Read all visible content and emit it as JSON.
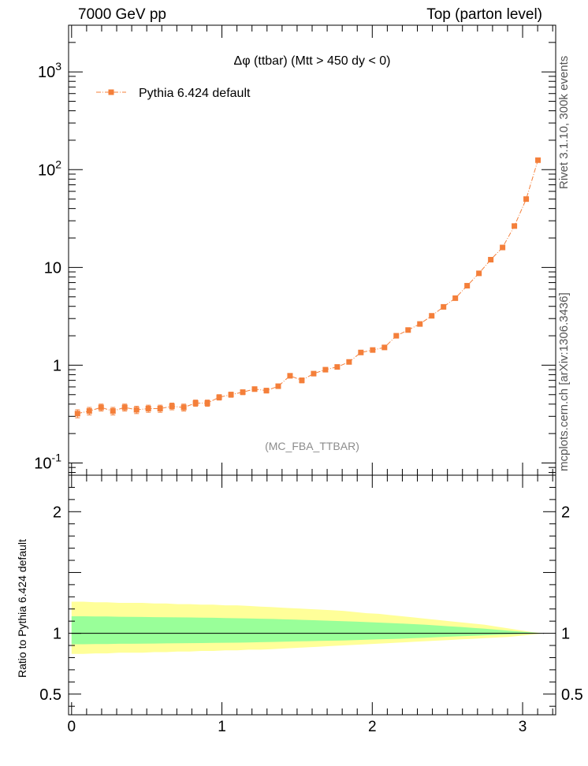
{
  "header": {
    "left": "7000 GeV pp",
    "right": "Top (parton level)"
  },
  "side": {
    "rivet": "Rivet 3.1.10,  300k events",
    "mcplots": "mcplots.cern.ch [arXiv:1306.3436]"
  },
  "colors": {
    "series": "#f47f3a",
    "band_outer": "#ffff99",
    "band_inner": "#99ff99"
  },
  "chart_data": [
    {
      "type": "scatter",
      "title": "Δφ (ttbar) (Mtt > 450 dy < 0)",
      "watermark": "(MC_FBA_TTBAR)",
      "yscale": "log",
      "xlim": [
        -0.02,
        3.22
      ],
      "ylim": [
        0.075,
        3000
      ],
      "legend": "top-left",
      "ytick_labels": [
        "10^-1",
        "1",
        "10",
        "10^2",
        "10^3"
      ],
      "series": [
        {
          "name": "Pythia 6.424 default",
          "x": [
            0.0393,
            0.1178,
            0.1963,
            0.2749,
            0.3534,
            0.432,
            0.5105,
            0.589,
            0.6676,
            0.7461,
            0.8247,
            0.9032,
            0.9817,
            1.0603,
            1.1388,
            1.2174,
            1.2959,
            1.3744,
            1.453,
            1.5315,
            1.6101,
            1.6886,
            1.7671,
            1.8457,
            1.9242,
            2.0028,
            2.0813,
            2.1598,
            2.2384,
            2.3169,
            2.3955,
            2.474,
            2.5525,
            2.6311,
            2.7096,
            2.7882,
            2.8667,
            2.9452,
            3.0238,
            3.1023
          ],
          "y": [
            0.32,
            0.34,
            0.37,
            0.34,
            0.37,
            0.35,
            0.36,
            0.36,
            0.38,
            0.37,
            0.41,
            0.41,
            0.47,
            0.5,
            0.53,
            0.57,
            0.55,
            0.61,
            0.78,
            0.7,
            0.82,
            0.9,
            0.96,
            1.08,
            1.35,
            1.43,
            1.52,
            2.0,
            2.29,
            2.64,
            3.2,
            3.95,
            4.85,
            6.5,
            8.7,
            12.0,
            16.0,
            26.5,
            50.0,
            125.0
          ],
          "yerr": [
            0.03,
            0.03,
            0.03,
            0.03,
            0.03,
            0.03,
            0.03,
            0.03,
            0.03,
            0.03,
            0.03,
            0.03,
            0.03,
            0.03,
            0.03,
            0.03,
            0.03,
            0.03,
            0.04,
            0.04,
            0.04,
            0.04,
            0.04,
            0.05,
            0.05,
            0.05,
            0.05,
            0.06,
            0.06,
            0.07,
            0.08,
            0.09,
            0.1,
            0.12,
            0.15,
            0.2,
            0.25,
            0.35,
            0.6,
            1.2
          ]
        }
      ]
    },
    {
      "type": "area",
      "ylabel": "Ratio to Pythia 6.424 default",
      "xlim": [
        -0.02,
        3.22
      ],
      "ylim": [
        0.33,
        2.3
      ],
      "xtick_labels": [
        "0",
        "1",
        "2",
        "3"
      ],
      "ytick_labels": [
        "0.5",
        "1",
        "2"
      ],
      "band_x": [
        0.0,
        0.0785,
        0.1571,
        0.2356,
        0.3142,
        0.3927,
        0.4712,
        0.5498,
        0.6283,
        0.7069,
        0.7854,
        0.8639,
        0.9425,
        1.021,
        1.0996,
        1.1781,
        1.2566,
        1.3352,
        1.4137,
        1.4923,
        1.5708,
        1.6493,
        1.7279,
        1.8064,
        1.885,
        1.9635,
        2.042,
        2.1206,
        2.1991,
        2.2777,
        2.3562,
        2.4347,
        2.5133,
        2.5918,
        2.6704,
        2.7489,
        2.8274,
        2.906,
        2.9845,
        3.0631,
        3.1416
      ],
      "outer_low": [
        0.83,
        0.83,
        0.835,
        0.835,
        0.84,
        0.84,
        0.84,
        0.845,
        0.845,
        0.85,
        0.85,
        0.855,
        0.855,
        0.86,
        0.86,
        0.865,
        0.865,
        0.87,
        0.875,
        0.88,
        0.885,
        0.89,
        0.895,
        0.9,
        0.905,
        0.91,
        0.915,
        0.92,
        0.925,
        0.93,
        0.935,
        0.94,
        0.945,
        0.95,
        0.955,
        0.96,
        0.965,
        0.97,
        0.98,
        0.99,
        1.0
      ],
      "outer_high": [
        1.26,
        1.26,
        1.255,
        1.255,
        1.25,
        1.25,
        1.25,
        1.245,
        1.245,
        1.24,
        1.24,
        1.235,
        1.235,
        1.23,
        1.23,
        1.225,
        1.22,
        1.215,
        1.21,
        1.205,
        1.2,
        1.195,
        1.19,
        1.185,
        1.175,
        1.165,
        1.16,
        1.15,
        1.14,
        1.13,
        1.12,
        1.11,
        1.1,
        1.09,
        1.08,
        1.07,
        1.055,
        1.04,
        1.025,
        1.01,
        1.0
      ],
      "inner_low": [
        0.91,
        0.91,
        0.912,
        0.912,
        0.914,
        0.914,
        0.915,
        0.916,
        0.917,
        0.918,
        0.919,
        0.92,
        0.921,
        0.922,
        0.923,
        0.925,
        0.927,
        0.929,
        0.931,
        0.933,
        0.935,
        0.937,
        0.939,
        0.941,
        0.944,
        0.947,
        0.95,
        0.953,
        0.956,
        0.96,
        0.964,
        0.968,
        0.972,
        0.976,
        0.98,
        0.984,
        0.988,
        0.991,
        0.994,
        0.997,
        1.0
      ],
      "inner_high": [
        1.14,
        1.14,
        1.138,
        1.138,
        1.136,
        1.135,
        1.134,
        1.133,
        1.132,
        1.131,
        1.13,
        1.129,
        1.128,
        1.126,
        1.124,
        1.122,
        1.12,
        1.118,
        1.115,
        1.112,
        1.109,
        1.106,
        1.103,
        1.1,
        1.096,
        1.092,
        1.088,
        1.084,
        1.08,
        1.075,
        1.07,
        1.064,
        1.058,
        1.052,
        1.045,
        1.038,
        1.03,
        1.022,
        1.014,
        1.007,
        1.0
      ]
    }
  ]
}
